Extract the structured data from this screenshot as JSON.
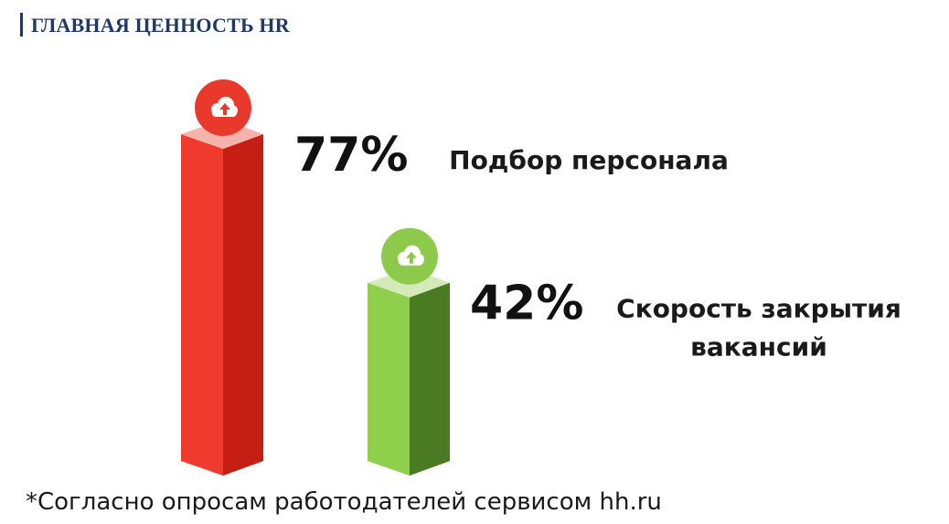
{
  "header": {
    "title": "ГЛАВНАЯ ЦЕННОСТЬ HR"
  },
  "chart_data": {
    "type": "bar",
    "title": "",
    "xlabel": "",
    "ylabel": "",
    "ylim": [
      0,
      100
    ],
    "grid": false,
    "categories": [
      "Подбор персонала",
      "Скорость закрытия вакансий"
    ],
    "values": [
      77,
      42
    ],
    "value_labels": [
      "77%",
      "42%"
    ],
    "label_lines": [
      [
        "Подбор персонала"
      ],
      [
        "Скорость закрытия",
        "вакансий"
      ]
    ],
    "colors": [
      "#ee3b2e",
      "#8fcf4b"
    ],
    "colors_dark": [
      "#c51f15",
      "#4a7a22"
    ],
    "colors_top": [
      "#f6b3ab",
      "#d4eab8"
    ],
    "badge_colors": [
      "#e8392c",
      "#8dc94a"
    ],
    "bar_icon": "cloud-upload-icon"
  },
  "footnote": "*Согласно опросам работодателей сервисом hh.ru"
}
